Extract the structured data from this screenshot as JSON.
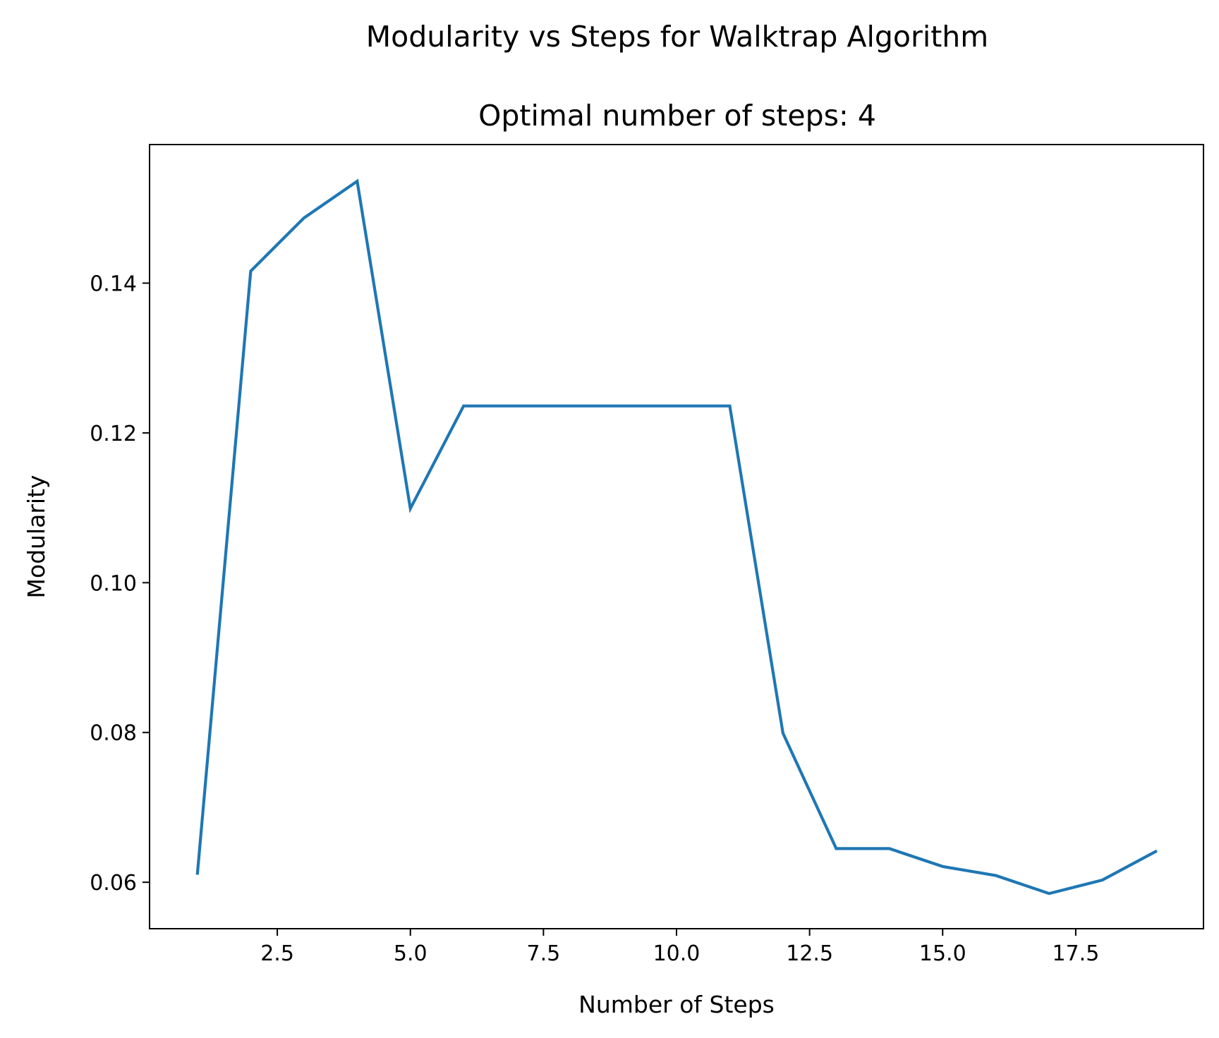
{
  "chart_data": {
    "type": "line",
    "title": "Modularity vs Steps for Walktrap Algorithm",
    "subtitle": "Optimal number of steps:  4",
    "xlabel": "Number of Steps",
    "ylabel": "Modularity",
    "xlim": [
      0.1,
      19.9
    ],
    "ylim": [
      0.0538,
      0.1585
    ],
    "xticks": [
      2.5,
      5.0,
      7.5,
      10.0,
      12.5,
      15.0,
      17.5
    ],
    "xtick_labels": [
      "2.5",
      "5.0",
      "7.5",
      "10.0",
      "12.5",
      "15.0",
      "17.5"
    ],
    "yticks": [
      0.06,
      0.08,
      0.1,
      0.12,
      0.14
    ],
    "ytick_labels": [
      "0.06",
      "0.08",
      "0.10",
      "0.12",
      "0.14"
    ],
    "grid": false,
    "series": [
      {
        "color": "#1f77b4",
        "x": [
          1,
          2,
          3,
          4,
          5,
          6,
          7,
          8,
          9,
          10,
          11,
          12,
          13,
          14,
          15,
          16,
          17,
          18,
          19
        ],
        "values": [
          0.0612,
          0.1416,
          0.1487,
          0.1536,
          0.1099,
          0.1236,
          0.1236,
          0.1236,
          0.1236,
          0.1236,
          0.1236,
          0.0799,
          0.0645,
          0.0645,
          0.0621,
          0.0609,
          0.0585,
          0.0603,
          0.0641
        ]
      }
    ]
  }
}
